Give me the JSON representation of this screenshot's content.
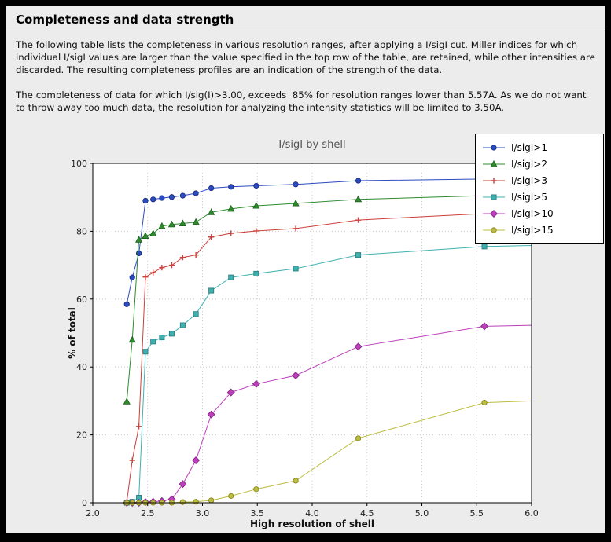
{
  "page": {
    "title": "Completeness and data strength",
    "paragraph1": "The following table lists the completeness in various resolution ranges, after applying a I/sigI cut. Miller indices for which individual I/sigI values are larger than the value specified in the top row of the table, are retained, while other intensities are discarded. The resulting completeness profiles are an indication of the strength of the data.",
    "paragraph2": "The completeness of data for which I/sig(I)>3.00, exceeds  85% for resolution ranges lower than 5.57A. As we do not want to throw away too much data, the resolution for analyzing the intensity statistics will be limited to 3.50A."
  },
  "chart_data": {
    "type": "line",
    "title": "I/sigI by shell",
    "xlabel": "High resolution of shell",
    "ylabel": "% of total",
    "xlim": [
      2.0,
      6.0
    ],
    "ylim": [
      0,
      100
    ],
    "xticks": [
      2.0,
      2.5,
      3.0,
      3.5,
      4.0,
      4.5,
      5.0,
      5.5,
      6.0
    ],
    "yticks": [
      0,
      20,
      40,
      60,
      80,
      100
    ],
    "grid": "dotted",
    "legend_position": "top-right",
    "x": [
      2.31,
      2.36,
      2.42,
      2.48,
      2.55,
      2.63,
      2.72,
      2.82,
      2.94,
      3.08,
      3.26,
      3.49,
      3.85,
      4.42,
      5.57
    ],
    "series": [
      {
        "label": "I/sigI>1",
        "color": "#2b4bc0",
        "edge": "#16277a",
        "marker": "circle",
        "values": [
          58.5,
          66.4,
          73.5,
          89.0,
          89.4,
          89.8,
          90.1,
          90.5,
          91.2,
          92.7,
          93.1,
          93.4,
          93.8,
          94.9,
          95.4
        ],
        "edge_value": 95.6
      },
      {
        "label": "I/sigI>2",
        "color": "#2e8b2e",
        "edge": "#1c5e1c",
        "marker": "triangle",
        "values": [
          29.8,
          48.0,
          77.5,
          78.6,
          79.3,
          81.5,
          82.0,
          82.3,
          82.7,
          85.6,
          86.6,
          87.5,
          88.2,
          89.4,
          90.5
        ],
        "edge_value": 90.8
      },
      {
        "label": "I/sigI>3",
        "color": "#cc3f3a",
        "edge": "#8f2520",
        "marker": "plus",
        "values": [
          0.2,
          12.5,
          22.5,
          66.5,
          67.8,
          69.3,
          70.0,
          72.3,
          73.0,
          78.3,
          79.4,
          80.1,
          80.8,
          83.3,
          85.2
        ],
        "edge_value": 85.5
      },
      {
        "label": "I/sigI>5",
        "color": "#3fb0b0",
        "edge": "#237878",
        "marker": "square",
        "values": [
          0.0,
          0.3,
          1.5,
          44.5,
          47.5,
          48.7,
          49.8,
          52.3,
          55.6,
          62.5,
          66.4,
          67.5,
          69.0,
          73.0,
          75.5
        ],
        "edge_value": 75.8
      },
      {
        "label": "I/sigI>10",
        "color": "#bc3fbc",
        "edge": "#7d217d",
        "marker": "diamond",
        "values": [
          0.0,
          0.0,
          0.0,
          0.2,
          0.3,
          0.5,
          1.0,
          5.5,
          12.5,
          26.0,
          32.5,
          35.0,
          37.5,
          46.0,
          52.0
        ],
        "edge_value": 52.3
      },
      {
        "label": "I/sigI>15",
        "color": "#bcbc3f",
        "edge": "#80801f",
        "marker": "circle",
        "values": [
          0.0,
          0.0,
          0.0,
          0.0,
          0.0,
          0.0,
          0.0,
          0.2,
          0.3,
          0.7,
          2.0,
          4.0,
          6.5,
          19.0,
          29.5
        ],
        "edge_value": 30.0
      }
    ]
  }
}
